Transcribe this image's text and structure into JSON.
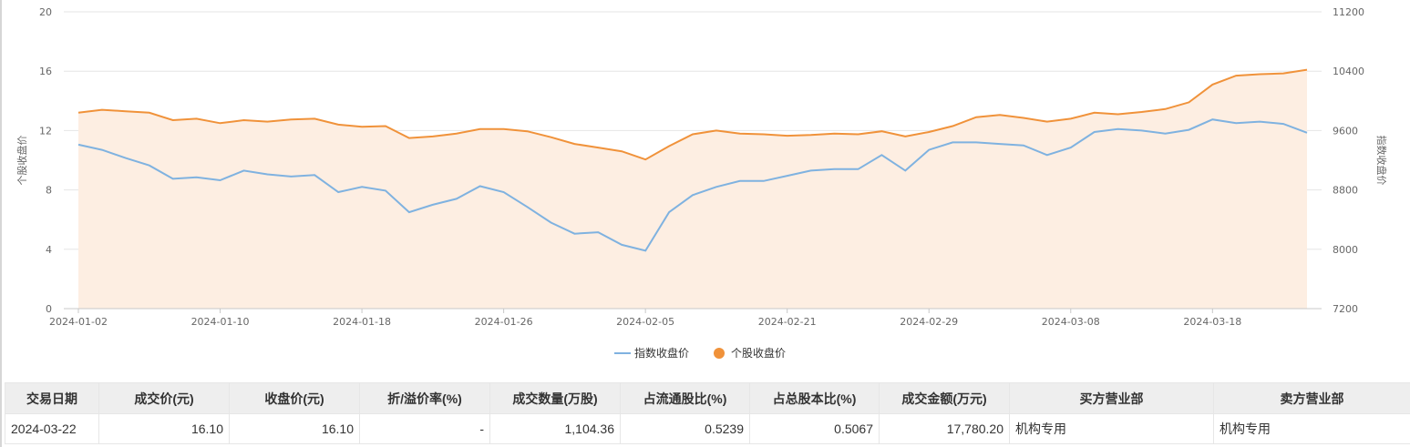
{
  "chart_data": {
    "type": "line",
    "x": [
      "2024-01-02",
      "2024-01-03",
      "2024-01-04",
      "2024-01-05",
      "2024-01-08",
      "2024-01-09",
      "2024-01-10",
      "2024-01-11",
      "2024-01-12",
      "2024-01-15",
      "2024-01-16",
      "2024-01-17",
      "2024-01-18",
      "2024-01-19",
      "2024-01-22",
      "2024-01-23",
      "2024-01-24",
      "2024-01-25",
      "2024-01-26",
      "2024-01-29",
      "2024-01-30",
      "2024-01-31",
      "2024-02-01",
      "2024-02-02",
      "2024-02-05",
      "2024-02-06",
      "2024-02-07",
      "2024-02-08",
      "2024-02-19",
      "2024-02-20",
      "2024-02-21",
      "2024-02-22",
      "2024-02-23",
      "2024-02-26",
      "2024-02-27",
      "2024-02-28",
      "2024-02-29",
      "2024-03-01",
      "2024-03-04",
      "2024-03-05",
      "2024-03-06",
      "2024-03-07",
      "2024-03-08",
      "2024-03-11",
      "2024-03-12",
      "2024-03-13",
      "2024-03-14",
      "2024-03-15",
      "2024-03-18",
      "2024-03-19",
      "2024-03-20",
      "2024-03-21",
      "2024-03-22"
    ],
    "x_tick_labels": [
      "2024-01-02",
      "2024-01-10",
      "2024-01-18",
      "2024-01-26",
      "2024-02-05",
      "2024-02-21",
      "2024-02-29",
      "2024-03-08",
      "2024-03-18"
    ],
    "series": [
      {
        "name": "指数收盘价",
        "axis": "right",
        "color": "#7fb2e0",
        "area": false,
        "values": [
          9410,
          9340,
          9230,
          9130,
          8950,
          8970,
          8930,
          9060,
          9010,
          8980,
          9000,
          8770,
          8840,
          8790,
          8500,
          8600,
          8680,
          8850,
          8770,
          8570,
          8360,
          8210,
          8230,
          8060,
          7980,
          8500,
          8730,
          8840,
          8920,
          8920,
          8990,
          9060,
          9080,
          9080,
          9270,
          9060,
          9340,
          9440,
          9440,
          9420,
          9400,
          9270,
          9370,
          9580,
          9620,
          9600,
          9560,
          9610,
          9750,
          9700,
          9720,
          9690,
          9570
        ]
      },
      {
        "name": "个股收盘价",
        "axis": "left",
        "color": "#f0923a",
        "area": true,
        "area_color": "#fdeee2",
        "values": [
          13.2,
          13.4,
          13.3,
          13.2,
          12.7,
          12.8,
          12.5,
          12.7,
          12.6,
          12.75,
          12.8,
          12.4,
          12.25,
          12.3,
          11.5,
          11.6,
          11.8,
          12.1,
          12.1,
          11.95,
          11.55,
          11.1,
          10.85,
          10.6,
          10.05,
          10.95,
          11.75,
          12.0,
          11.8,
          11.75,
          11.65,
          11.7,
          11.8,
          11.75,
          11.95,
          11.6,
          11.9,
          12.3,
          12.9,
          13.05,
          12.85,
          12.6,
          12.8,
          13.2,
          13.1,
          13.25,
          13.45,
          13.9,
          15.1,
          15.7,
          15.8,
          15.85,
          16.1
        ]
      }
    ],
    "y_left": {
      "label": "个股收盘价",
      "range": [
        0,
        20
      ],
      "ticks": [
        0,
        4,
        8,
        12,
        16,
        20
      ]
    },
    "y_right": {
      "label": "指数收盘价",
      "range": [
        7200,
        11200
      ],
      "ticks": [
        7200,
        8000,
        8800,
        9600,
        10400,
        11200
      ]
    },
    "grid": true,
    "legend_position": "bottom-center"
  },
  "table": {
    "headers": [
      "交易日期",
      "成交价(元)",
      "收盘价(元)",
      "折/溢价率(%)",
      "成交数量(万股)",
      "占流通股比(%)",
      "占总股本比(%)",
      "成交金额(万元)",
      "买方营业部",
      "卖方营业部"
    ],
    "rows": [
      {
        "date": "2024-03-22",
        "price": "16.10",
        "close": "16.10",
        "premium": "-",
        "volume": "1,104.36",
        "float_pct": "0.5239",
        "total_pct": "0.5067",
        "amount": "17,780.20",
        "buyer": "机构专用",
        "seller": "机构专用"
      }
    ]
  }
}
